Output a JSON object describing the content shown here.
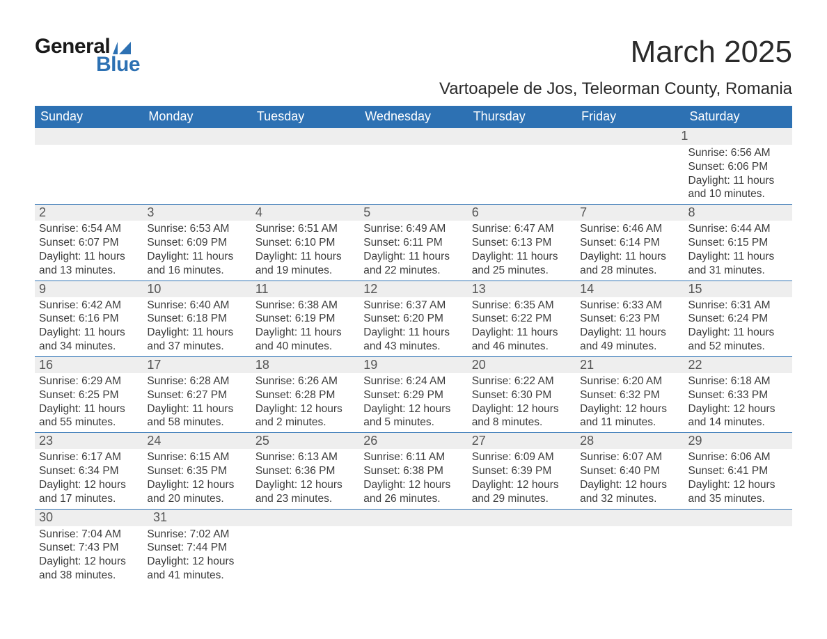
{
  "brand": {
    "word1": "General",
    "word2": "Blue",
    "accent_color": "#2d71b3"
  },
  "title": "March 2025",
  "location": "Vartoapele de Jos, Teleorman County, Romania",
  "colors": {
    "header_bg": "#2d71b3",
    "header_text": "#ffffff",
    "daybar_bg": "#eeeeee",
    "body_text": "#3c3c3c",
    "page_bg": "#ffffff"
  },
  "typography": {
    "title_fontsize": 44,
    "location_fontsize": 24,
    "dow_fontsize": 18,
    "daynum_fontsize": 18,
    "body_fontsize": 15.5
  },
  "days_of_week": [
    "Sunday",
    "Monday",
    "Tuesday",
    "Wednesday",
    "Thursday",
    "Friday",
    "Saturday"
  ],
  "weeks": [
    [
      null,
      null,
      null,
      null,
      null,
      null,
      {
        "n": "1",
        "sunrise": "6:56 AM",
        "sunset": "6:06 PM",
        "daylight": "11 hours and 10 minutes."
      }
    ],
    [
      {
        "n": "2",
        "sunrise": "6:54 AM",
        "sunset": "6:07 PM",
        "daylight": "11 hours and 13 minutes."
      },
      {
        "n": "3",
        "sunrise": "6:53 AM",
        "sunset": "6:09 PM",
        "daylight": "11 hours and 16 minutes."
      },
      {
        "n": "4",
        "sunrise": "6:51 AM",
        "sunset": "6:10 PM",
        "daylight": "11 hours and 19 minutes."
      },
      {
        "n": "5",
        "sunrise": "6:49 AM",
        "sunset": "6:11 PM",
        "daylight": "11 hours and 22 minutes."
      },
      {
        "n": "6",
        "sunrise": "6:47 AM",
        "sunset": "6:13 PM",
        "daylight": "11 hours and 25 minutes."
      },
      {
        "n": "7",
        "sunrise": "6:46 AM",
        "sunset": "6:14 PM",
        "daylight": "11 hours and 28 minutes."
      },
      {
        "n": "8",
        "sunrise": "6:44 AM",
        "sunset": "6:15 PM",
        "daylight": "11 hours and 31 minutes."
      }
    ],
    [
      {
        "n": "9",
        "sunrise": "6:42 AM",
        "sunset": "6:16 PM",
        "daylight": "11 hours and 34 minutes."
      },
      {
        "n": "10",
        "sunrise": "6:40 AM",
        "sunset": "6:18 PM",
        "daylight": "11 hours and 37 minutes."
      },
      {
        "n": "11",
        "sunrise": "6:38 AM",
        "sunset": "6:19 PM",
        "daylight": "11 hours and 40 minutes."
      },
      {
        "n": "12",
        "sunrise": "6:37 AM",
        "sunset": "6:20 PM",
        "daylight": "11 hours and 43 minutes."
      },
      {
        "n": "13",
        "sunrise": "6:35 AM",
        "sunset": "6:22 PM",
        "daylight": "11 hours and 46 minutes."
      },
      {
        "n": "14",
        "sunrise": "6:33 AM",
        "sunset": "6:23 PM",
        "daylight": "11 hours and 49 minutes."
      },
      {
        "n": "15",
        "sunrise": "6:31 AM",
        "sunset": "6:24 PM",
        "daylight": "11 hours and 52 minutes."
      }
    ],
    [
      {
        "n": "16",
        "sunrise": "6:29 AM",
        "sunset": "6:25 PM",
        "daylight": "11 hours and 55 minutes."
      },
      {
        "n": "17",
        "sunrise": "6:28 AM",
        "sunset": "6:27 PM",
        "daylight": "11 hours and 58 minutes."
      },
      {
        "n": "18",
        "sunrise": "6:26 AM",
        "sunset": "6:28 PM",
        "daylight": "12 hours and 2 minutes."
      },
      {
        "n": "19",
        "sunrise": "6:24 AM",
        "sunset": "6:29 PM",
        "daylight": "12 hours and 5 minutes."
      },
      {
        "n": "20",
        "sunrise": "6:22 AM",
        "sunset": "6:30 PM",
        "daylight": "12 hours and 8 minutes."
      },
      {
        "n": "21",
        "sunrise": "6:20 AM",
        "sunset": "6:32 PM",
        "daylight": "12 hours and 11 minutes."
      },
      {
        "n": "22",
        "sunrise": "6:18 AM",
        "sunset": "6:33 PM",
        "daylight": "12 hours and 14 minutes."
      }
    ],
    [
      {
        "n": "23",
        "sunrise": "6:17 AM",
        "sunset": "6:34 PM",
        "daylight": "12 hours and 17 minutes."
      },
      {
        "n": "24",
        "sunrise": "6:15 AM",
        "sunset": "6:35 PM",
        "daylight": "12 hours and 20 minutes."
      },
      {
        "n": "25",
        "sunrise": "6:13 AM",
        "sunset": "6:36 PM",
        "daylight": "12 hours and 23 minutes."
      },
      {
        "n": "26",
        "sunrise": "6:11 AM",
        "sunset": "6:38 PM",
        "daylight": "12 hours and 26 minutes."
      },
      {
        "n": "27",
        "sunrise": "6:09 AM",
        "sunset": "6:39 PM",
        "daylight": "12 hours and 29 minutes."
      },
      {
        "n": "28",
        "sunrise": "6:07 AM",
        "sunset": "6:40 PM",
        "daylight": "12 hours and 32 minutes."
      },
      {
        "n": "29",
        "sunrise": "6:06 AM",
        "sunset": "6:41 PM",
        "daylight": "12 hours and 35 minutes."
      }
    ],
    [
      {
        "n": "30",
        "sunrise": "7:04 AM",
        "sunset": "7:43 PM",
        "daylight": "12 hours and 38 minutes."
      },
      {
        "n": "31",
        "sunrise": "7:02 AM",
        "sunset": "7:44 PM",
        "daylight": "12 hours and 41 minutes."
      },
      null,
      null,
      null,
      null,
      null
    ]
  ],
  "labels": {
    "sunrise": "Sunrise: ",
    "sunset": "Sunset: ",
    "daylight": "Daylight: "
  }
}
